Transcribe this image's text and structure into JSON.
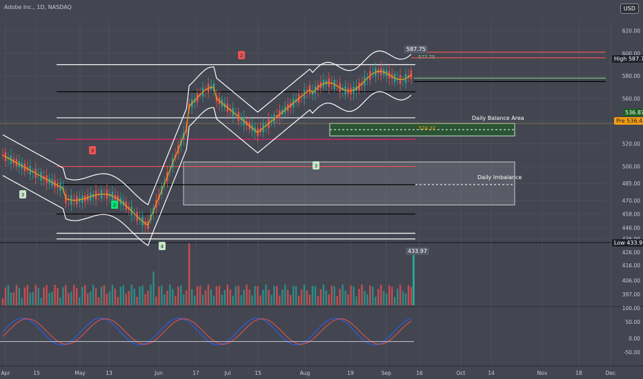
{
  "header": {
    "title": "Adobe Inc., 1D, NASDAQ",
    "currency": "USD"
  },
  "chart_data": {
    "type": "candlestick",
    "symbol": "Adobe Inc.",
    "interval": "1D",
    "exchange": "NASDAQ",
    "currency": "USD",
    "price_axis": {
      "range": [
        434,
        630
      ],
      "ticks": [
        "620.00",
        "600.00",
        "580.00",
        "560.00",
        "540.00",
        "520.00",
        "500.00",
        "485.00",
        "470.00",
        "458.00",
        "446.00",
        "436.00"
      ]
    },
    "volume_axis": {
      "ticks": [
        "426.00",
        "416.00",
        "406.00",
        "397.00"
      ]
    },
    "oscillator_axis": {
      "ticks": [
        "100.00",
        "50.00",
        "0.00",
        "-50.00"
      ]
    },
    "time_axis": {
      "ticks": [
        "Apr",
        "15",
        "May",
        "13",
        "Jun",
        "17",
        "Jul",
        "15",
        "Aug",
        "19",
        "Sep",
        "16",
        "Oct",
        "14",
        "Nov",
        "18",
        "Dec"
      ]
    },
    "price_labels": {
      "high": {
        "label": "High",
        "value": "587.75"
      },
      "last": {
        "value": "536.87"
      },
      "pre": {
        "label": "Pre",
        "value": "536.41"
      },
      "low": {
        "label": "Low",
        "value": "433.97"
      },
      "peak_annotation": "587.75",
      "small_annotation": "577.75",
      "mid_annotation": "524.32",
      "vol_annotation": "433.97"
    },
    "zones": [
      {
        "name": "Daily Balance Area",
        "top": 538,
        "bottom": 527,
        "color": "#1b5e20"
      },
      {
        "name": "Daily Imbalance",
        "top": 504,
        "bottom": 466,
        "color": "#ffffff"
      }
    ],
    "horizontal_levels": [
      {
        "value": 601,
        "color": "#ef5350"
      },
      {
        "value": 596,
        "color": "#ef5350"
      },
      {
        "value": 590,
        "color": "#ffffff"
      },
      {
        "value": 578,
        "color": "#81c784"
      },
      {
        "value": 575,
        "color": "#000000"
      },
      {
        "value": 566,
        "color": "#000000"
      },
      {
        "value": 543,
        "color": "#ffffff"
      },
      {
        "value": 524,
        "color": "#e91e63"
      },
      {
        "value": 500,
        "color": "#ef5350"
      },
      {
        "value": 484,
        "color": "#000000"
      },
      {
        "value": 458,
        "color": "#000000"
      },
      {
        "value": 441,
        "color": "#ffffff"
      },
      {
        "value": 436,
        "color": "#ffffff"
      }
    ],
    "markers": [
      {
        "text": "3",
        "color": "#ef5350",
        "dir": "down"
      },
      {
        "text": "2",
        "color": "#ef5350",
        "dir": "down"
      },
      {
        "text": "3",
        "color": "#c8e6c9",
        "dir": "up"
      },
      {
        "text": "2",
        "color": "#00e676",
        "dir": "up"
      },
      {
        "text": "4",
        "color": "#c8e6c9",
        "dir": "up"
      },
      {
        "text": "3",
        "color": "#c8e6c9",
        "dir": "up"
      }
    ],
    "colors": {
      "up": "#26a69a",
      "down": "#ef5350",
      "bb": "#ffffff",
      "ma": "#f39c12",
      "osc_blue": "#2962ff",
      "osc_red": "#ef5350"
    }
  }
}
